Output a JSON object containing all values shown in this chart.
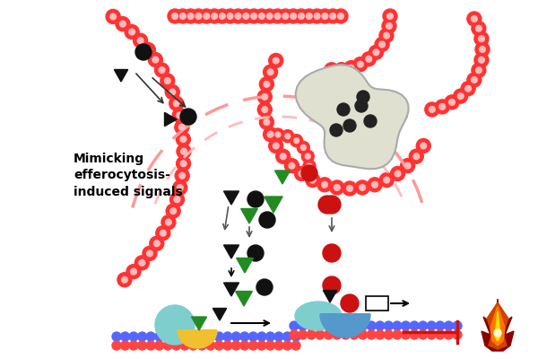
{
  "bg": "#ffffff",
  "mem_red": "#ff3333",
  "mem_pink": "#ffbbbb",
  "black": "#111111",
  "dark_green": "#228B22",
  "red": "#cc1111",
  "light_blue": "#7ec8c8",
  "sky_blue": "#5599cc",
  "yellow": "#f0c030",
  "dna_blue": "#5566ff",
  "dna_red": "#ff4444",
  "blob_fill": "#e0e0d0",
  "blob_edge": "#aaaaaa",
  "title": "Mimicking\nefferocytosis-\ninduced signals",
  "title_fs": 10,
  "fig_w": 6.0,
  "fig_h": 4.0,
  "dpi": 100
}
